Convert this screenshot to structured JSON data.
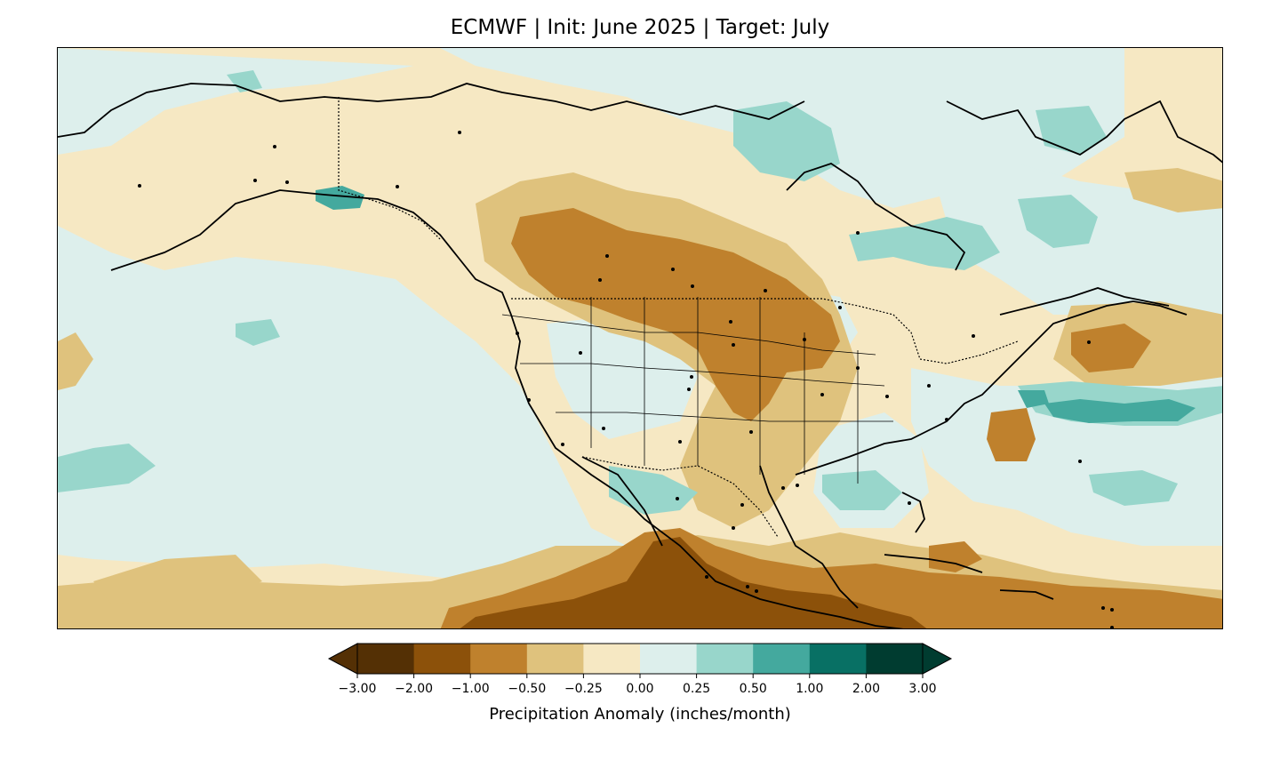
{
  "title": "ECMWF | Init: June 2025 | Target: July",
  "colorbar": {
    "label": "Precipitation Anomaly (inches/month)",
    "ticks": [
      "−3.00",
      "−2.00",
      "−1.00",
      "−0.50",
      "−0.25",
      "0.00",
      "0.25",
      "0.50",
      "1.00",
      "2.00",
      "3.00"
    ],
    "bins": [
      {
        "range": "< -3.00",
        "color": "#543005"
      },
      {
        "range": "-3.00 to -2.00",
        "color": "#543005"
      },
      {
        "range": "-2.00 to -1.00",
        "color": "#8c510a"
      },
      {
        "range": "-1.00 to -0.50",
        "color": "#bf812d"
      },
      {
        "range": "-0.50 to -0.25",
        "color": "#dfc27d"
      },
      {
        "range": "-0.25 to 0.00",
        "color": "#f6e8c3"
      },
      {
        "range": "0.00 to 0.25",
        "color": "#ddefec"
      },
      {
        "range": "0.25 to 0.50",
        "color": "#98d6cb"
      },
      {
        "range": "0.50 to 1.00",
        "color": "#44a99e"
      },
      {
        "range": "1.00 to 2.00",
        "color": "#087064"
      },
      {
        "range": "2.00 to 3.00",
        "color": "#003c30"
      },
      {
        "range": "> 3.00",
        "color": "#003c30"
      }
    ],
    "extend": "both"
  },
  "map": {
    "region": "North America",
    "overlays": [
      "coastlines",
      "country borders",
      "US state borders",
      "city dots"
    ]
  }
}
